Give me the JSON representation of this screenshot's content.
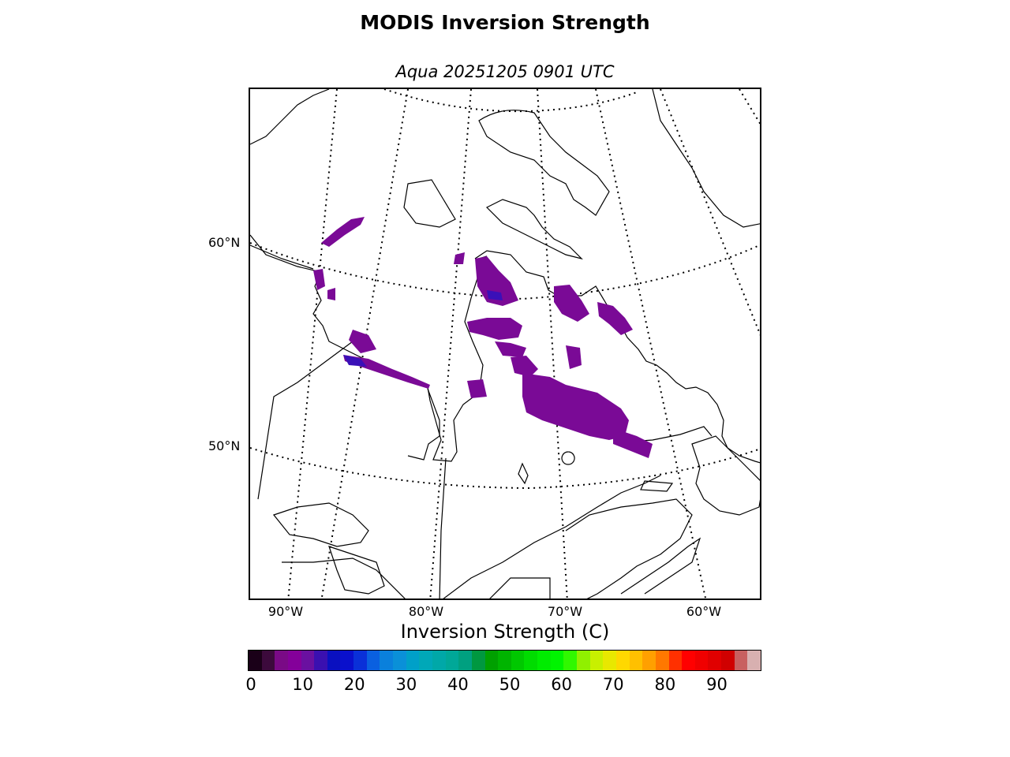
{
  "title": "MODIS Inversion Strength",
  "subtitle": "Aqua 20251205 0901 UTC",
  "map": {
    "lat_labels": [
      "60°N",
      "50°N"
    ],
    "lon_labels": [
      "90°W",
      "80°W",
      "70°W",
      "60°W"
    ],
    "colors": {
      "coast": "#000000",
      "grid": "#000000",
      "inversion": "#7a0a96",
      "inversion_strong": "#3a10b8"
    }
  },
  "colorbar": {
    "label": "Inversion Strength (C)",
    "ticks": [
      "0",
      "10",
      "20",
      "30",
      "40",
      "50",
      "60",
      "70",
      "80",
      "90"
    ],
    "range": [
      0,
      98
    ],
    "colors": [
      "#1a0018",
      "#3c0a3c",
      "#7a0a86",
      "#84009a",
      "#6a10a0",
      "#3a10b0",
      "#0a10c0",
      "#0a10cc",
      "#0a30d8",
      "#0a60e0",
      "#0a80dc",
      "#0a90d8",
      "#00a0c8",
      "#00a8b8",
      "#00a8a8",
      "#00a898",
      "#00a080",
      "#009840",
      "#00a000",
      "#00b400",
      "#00c800",
      "#00dc00",
      "#00ec00",
      "#00f400",
      "#30f800",
      "#90f000",
      "#c8f000",
      "#e8e800",
      "#ffd800",
      "#ffc000",
      "#ffa000",
      "#ff7800",
      "#ff3000",
      "#ff0000",
      "#f00000",
      "#e00000",
      "#d00000",
      "#c86060",
      "#d8b0b0"
    ]
  }
}
